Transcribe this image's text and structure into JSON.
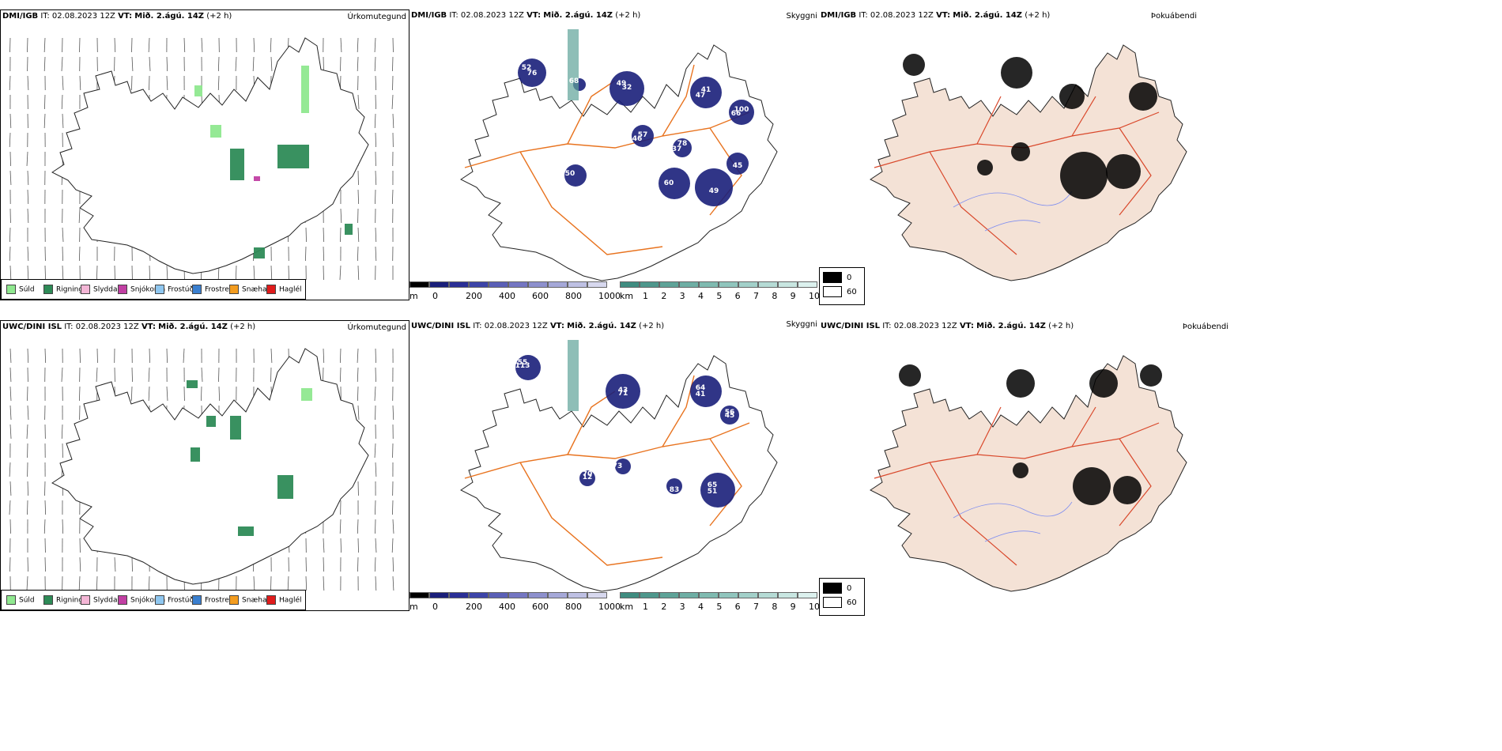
{
  "header_common": {
    "it_label": "IT:",
    "it_value": "02.08.2023 12Z",
    "vt_label": "VT:",
    "vt_value": "Mið. 2.ágú. 14Z",
    "lead": "(+2 h)"
  },
  "rows": [
    {
      "model": "DMI/IGB"
    },
    {
      "model": "UWC/DINI ISL"
    }
  ],
  "titles": {
    "precip": "Úrkomutegund",
    "visibility": "Skyggni",
    "fog": "Þokuábendi"
  },
  "precip_legend": [
    {
      "label": "Súld",
      "color": "#8fe88f"
    },
    {
      "label": "Rigning",
      "color": "#2e8b57"
    },
    {
      "label": "Slydda",
      "color": "#f4b6d6"
    },
    {
      "label": "Snjókoma",
      "color": "#c13fa3"
    },
    {
      "label": "Frostúði",
      "color": "#8fc7f0"
    },
    {
      "label": "Frostregn",
      "color": "#3a7fcf"
    },
    {
      "label": "Snæhagl",
      "color": "#f39c1f"
    },
    {
      "label": "Haglél",
      "color": "#e01b1b"
    }
  ],
  "cloud_base_bar": {
    "unit": "m",
    "ticks": [
      "0",
      "200",
      "400",
      "600",
      "800",
      "1000"
    ],
    "colors": [
      "#000000",
      "#1a1f7a",
      "#2a2f96",
      "#3c44a8",
      "#5a5fb6",
      "#7476c2",
      "#8d90cd",
      "#a5a8d8",
      "#bec0e3",
      "#d7d8ee"
    ]
  },
  "visibility_bar": {
    "unit": "km",
    "ticks": [
      "1",
      "2",
      "3",
      "4",
      "5",
      "6",
      "7",
      "8",
      "9",
      "10"
    ],
    "colors": [
      "#3f8c80",
      "#4e978c",
      "#5ea398",
      "#6eaea4",
      "#7fbab0",
      "#90c5bd",
      "#a2d0c9",
      "#b5dbd5",
      "#c8e6e1",
      "#dcf1ee"
    ]
  },
  "fog_legend": [
    {
      "label": "0",
      "color": "#000000"
    },
    {
      "label": "60",
      "color": "#ffffff"
    }
  ],
  "visibility_labels": [
    [
      "52",
      "32",
      "46",
      "41",
      "66",
      "78",
      "60",
      "49",
      "50",
      "45",
      "68",
      "76",
      "49",
      "57",
      "47",
      "100",
      "37"
    ],
    [
      "55",
      "43",
      "41",
      "56",
      "51",
      "70",
      "73",
      "83",
      "113",
      "71",
      "64",
      "45",
      "65",
      "12"
    ]
  ],
  "colors": {
    "land_fog": "#f4e2d6",
    "roads": "#e8731f",
    "rivers": "#7f8ef0",
    "red_roads": "#d9482b",
    "rain": "#2e8b57",
    "drizzle": "#8fe88f",
    "cloud_dark": "#1a1f7a",
    "teal": "#5ea398"
  }
}
